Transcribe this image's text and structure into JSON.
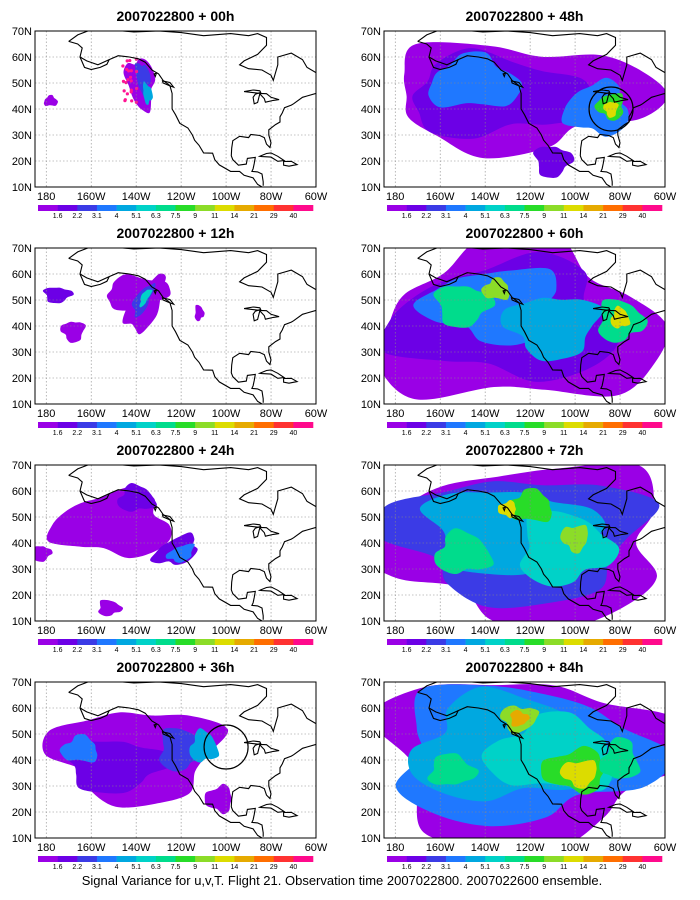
{
  "caption": "Signal Variance for u,v,T. Flight 21. Observation time 2007022800. 2007022600 ensemble.",
  "x_ticks": [
    "180",
    "160W",
    "140W",
    "120W",
    "100W",
    "80W",
    "60W"
  ],
  "y_ticks": [
    "10N",
    "20N",
    "30N",
    "40N",
    "50N",
    "60N",
    "70N"
  ],
  "colorbar": {
    "labels": [
      "1.6",
      "2.2",
      "3.1",
      "4",
      "5.1",
      "6.3",
      "7.5",
      "9",
      "11",
      "14",
      "21",
      "29",
      "40"
    ],
    "colors": [
      "#9a00e6",
      "#6c00e6",
      "#3b3be6",
      "#1f78ff",
      "#00a8e0",
      "#00d2c8",
      "#00dc8c",
      "#28dc28",
      "#8cdc28",
      "#dcdc00",
      "#e6aa00",
      "#ff6e00",
      "#ff3232",
      "#ff0a8c"
    ]
  },
  "panels": [
    {
      "title": "2007022800 + 00h",
      "intensity": 0
    },
    {
      "title": "2007022800 + 48h",
      "intensity": 4
    },
    {
      "title": "2007022800 + 12h",
      "intensity": 1
    },
    {
      "title": "2007022800 + 60h",
      "intensity": 5
    },
    {
      "title": "2007022800 + 24h",
      "intensity": 2
    },
    {
      "title": "2007022800 + 72h",
      "intensity": 6
    },
    {
      "title": "2007022800 + 36h",
      "intensity": 3
    },
    {
      "title": "2007022800 + 84h",
      "intensity": 7
    }
  ]
}
